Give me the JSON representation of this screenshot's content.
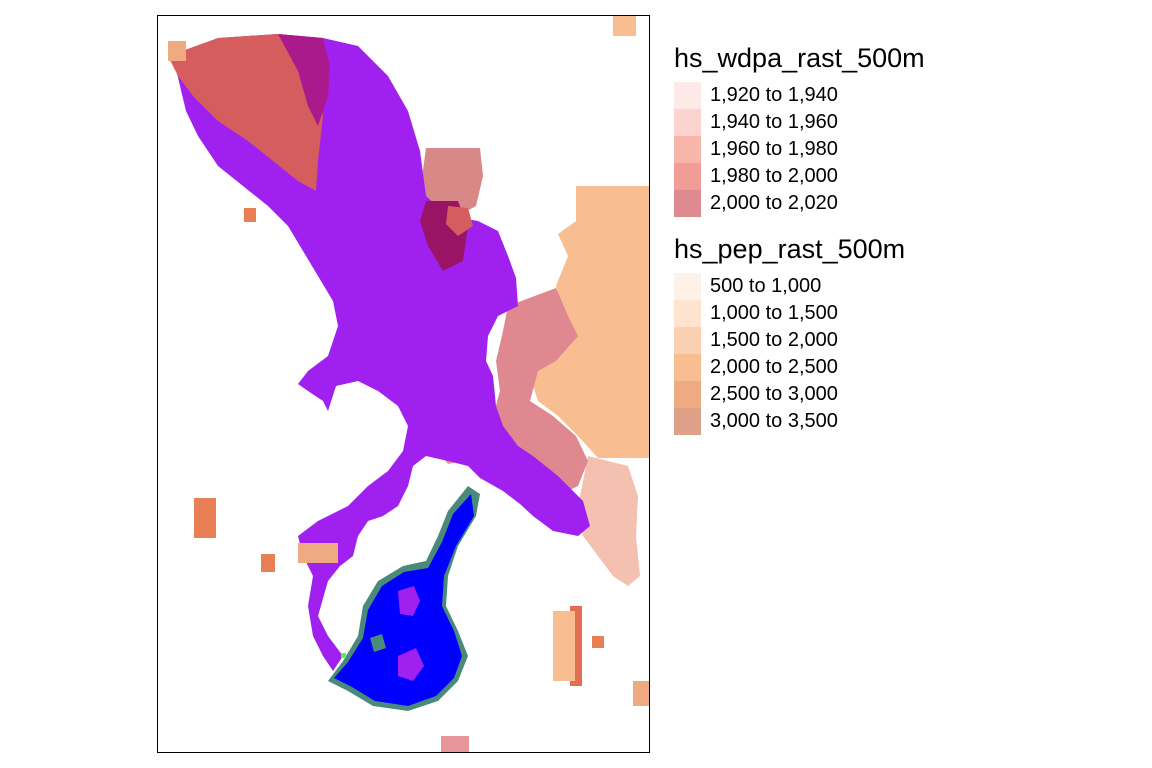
{
  "map": {
    "palette": {
      "reserve_purple": "#a020f0",
      "reserve_dark": "#aa1a8c",
      "reserve_darker": "#9a1466",
      "red_zone": "#d55d5d",
      "lake_blue": "#0000ff",
      "lake_edge": "#4a8a7a",
      "bright_green": "#44ff44"
    }
  },
  "legend": {
    "wdpa": {
      "title": "hs_wdpa_rast_500m",
      "items": [
        {
          "label": "1,920 to 1,940",
          "color": "#fdeae6"
        },
        {
          "label": "1,940 to 1,960",
          "color": "#fcd4cd"
        },
        {
          "label": "1,960 to 1,980",
          "color": "#f8b6ab"
        },
        {
          "label": "1,980 to 2,000",
          "color": "#f09c97"
        },
        {
          "label": "2,000 to 2,020",
          "color": "#de8a91"
        }
      ]
    },
    "pep": {
      "title": "hs_pep_rast_500m",
      "items": [
        {
          "label": "500 to 1,000",
          "color": "#fef1e7"
        },
        {
          "label": "1,000 to 1,500",
          "color": "#fde3d0"
        },
        {
          "label": "1,500 to 2,000",
          "color": "#fbd0b0"
        },
        {
          "label": "2,000 to 2,500",
          "color": "#f8bd90"
        },
        {
          "label": "2,500 to 3,000",
          "color": "#efaa82"
        },
        {
          "label": "3,000 to 3,500",
          "color": "#dfa08a"
        }
      ]
    }
  }
}
